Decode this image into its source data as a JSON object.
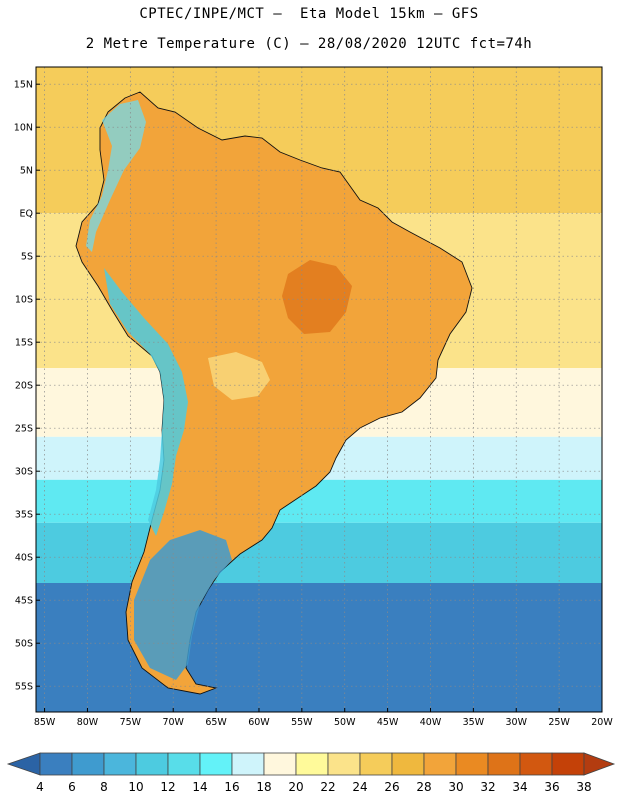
{
  "header": {
    "line1": "CPTEC/INPE/MCT –  Eta Model 15km – GFS",
    "line2": "2 Metre Temperature (C) – 28/08/2020 12UTC fct=74h"
  },
  "map": {
    "lon_range": [
      -86,
      -20
    ],
    "lat_range": [
      -58,
      17
    ],
    "lat_ticks": [
      {
        "v": 15,
        "label": "15N"
      },
      {
        "v": 10,
        "label": "10N"
      },
      {
        "v": 5,
        "label": "5N"
      },
      {
        "v": 0,
        "label": "EQ"
      },
      {
        "v": -5,
        "label": "5S"
      },
      {
        "v": -10,
        "label": "10S"
      },
      {
        "v": -15,
        "label": "15S"
      },
      {
        "v": -20,
        "label": "20S"
      },
      {
        "v": -25,
        "label": "25S"
      },
      {
        "v": -30,
        "label": "30S"
      },
      {
        "v": -35,
        "label": "35S"
      },
      {
        "v": -40,
        "label": "40S"
      },
      {
        "v": -45,
        "label": "45S"
      },
      {
        "v": -50,
        "label": "50S"
      },
      {
        "v": -55,
        "label": "55S"
      }
    ],
    "lon_ticks": [
      {
        "v": -85,
        "label": "85W"
      },
      {
        "v": -80,
        "label": "80W"
      },
      {
        "v": -75,
        "label": "75W"
      },
      {
        "v": -70,
        "label": "70W"
      },
      {
        "v": -65,
        "label": "65W"
      },
      {
        "v": -60,
        "label": "60W"
      },
      {
        "v": -55,
        "label": "55W"
      },
      {
        "v": -50,
        "label": "50W"
      },
      {
        "v": -45,
        "label": "45W"
      },
      {
        "v": -40,
        "label": "40W"
      },
      {
        "v": -35,
        "label": "35W"
      },
      {
        "v": -30,
        "label": "30W"
      },
      {
        "v": -25,
        "label": "25W"
      },
      {
        "v": -20,
        "label": "20W"
      }
    ],
    "zones": [
      {
        "lat_top": 17,
        "lat_bottom": 0,
        "color": "#f5cc5a"
      },
      {
        "lat_top": 0,
        "lat_bottom": -18,
        "color": "#fbe38a"
      },
      {
        "lat_top": -18,
        "lat_bottom": -26,
        "color": "#fff7dd"
      },
      {
        "lat_top": -26,
        "lat_bottom": -31,
        "color": "#cff4fb"
      },
      {
        "lat_top": -31,
        "lat_bottom": -36,
        "color": "#5fe9f2"
      },
      {
        "lat_top": -36,
        "lat_bottom": -43,
        "color": "#4dcbe0"
      },
      {
        "lat_top": -43,
        "lat_bottom": -58,
        "color": "#3a7fbf"
      }
    ],
    "land_color": "#f2a43a",
    "hot_core_color": "#de7318",
    "andes_color": "#73d9ec"
  },
  "colorbar": {
    "labels": [
      "4",
      "6",
      "8",
      "10",
      "12",
      "14",
      "16",
      "18",
      "20",
      "22",
      "24",
      "26",
      "28",
      "30",
      "32",
      "34",
      "36",
      "38"
    ],
    "colors": [
      "#2b63a5",
      "#3a7fbf",
      "#3f9bcf",
      "#4bb6dc",
      "#4dcbe0",
      "#58dde9",
      "#63f2f8",
      "#cff4fb",
      "#fff7dd",
      "#fffa9a",
      "#fbe38a",
      "#f5cc5a",
      "#efb83e",
      "#f2a43a",
      "#ea8a22",
      "#de7318",
      "#d25810",
      "#c44108",
      "#b33c10"
    ]
  }
}
